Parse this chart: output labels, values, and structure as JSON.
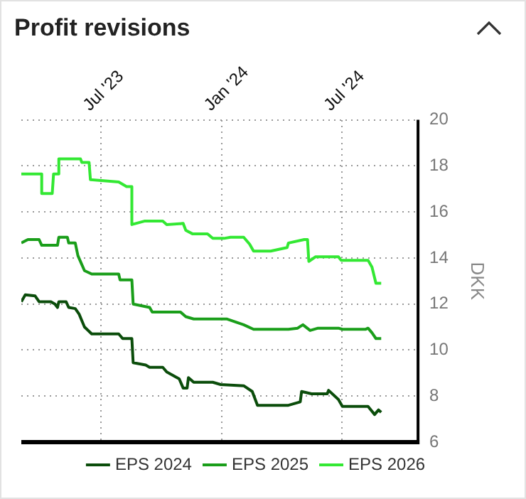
{
  "chart_data": {
    "type": "line",
    "title": "Profit revisions",
    "ylabel": "DKK",
    "xlim": [
      "2023-03-02",
      "2024-10-25"
    ],
    "xticks": [
      {
        "value": "2023-07-01",
        "label": "Jul '23"
      },
      {
        "value": "2024-01-01",
        "label": "Jan '24"
      },
      {
        "value": "2024-07-01",
        "label": "Jul '24"
      }
    ],
    "ylim": [
      6,
      20
    ],
    "yticks": [
      6,
      8,
      10,
      12,
      14,
      16,
      18,
      20
    ],
    "grid": true,
    "legend": "bottom",
    "marker": "none",
    "line_style": "solid",
    "series": [
      {
        "name": "EPS 2024",
        "color": "#0b4d0b",
        "x": [
          "2023-03-02",
          "2023-03-08",
          "2023-03-23",
          "2023-03-29",
          "2023-04-16",
          "2023-04-22",
          "2023-04-26",
          "2023-04-28",
          "2023-05-09",
          "2023-05-13",
          "2023-05-23",
          "2023-05-29",
          "2023-06-06",
          "2023-06-17",
          "2023-07-28",
          "2023-08-03",
          "2023-08-17",
          "2023-08-19",
          "2023-09-07",
          "2023-09-13",
          "2023-10-03",
          "2023-10-09",
          "2023-10-28",
          "2023-11-03",
          "2023-11-09",
          "2023-11-11",
          "2023-11-19",
          "2023-12-18",
          "2023-12-30",
          "2024-02-03",
          "2024-02-16",
          "2024-02-24",
          "2024-04-11",
          "2024-04-29",
          "2024-05-01",
          "2024-05-16",
          "2024-06-09",
          "2024-06-11",
          "2024-06-26",
          "2024-07-02",
          "2024-08-10",
          "2024-08-20",
          "2024-08-26",
          "2024-08-30"
        ],
        "values": [
          12.1,
          12.4,
          12.35,
          12.1,
          12.1,
          12.0,
          11.85,
          12.1,
          12.1,
          11.85,
          11.8,
          11.55,
          11.0,
          10.7,
          10.7,
          10.5,
          10.5,
          9.45,
          9.35,
          9.25,
          9.25,
          9.05,
          8.75,
          8.35,
          8.35,
          8.8,
          8.6,
          8.6,
          8.5,
          8.45,
          8.2,
          7.6,
          7.6,
          7.75,
          8.2,
          8.1,
          8.1,
          8.25,
          7.85,
          7.55,
          7.55,
          7.2,
          7.4,
          7.3
        ]
      },
      {
        "name": "EPS 2025",
        "color": "#1a9e1a",
        "x": [
          "2023-03-02",
          "2023-03-12",
          "2023-03-29",
          "2023-04-02",
          "2023-04-26",
          "2023-04-28",
          "2023-05-11",
          "2023-05-13",
          "2023-05-23",
          "2023-05-27",
          "2023-06-06",
          "2023-06-17",
          "2023-07-28",
          "2023-07-30",
          "2023-08-17",
          "2023-08-19",
          "2023-09-13",
          "2023-09-17",
          "2023-10-30",
          "2023-11-07",
          "2023-11-19",
          "2024-01-08",
          "2024-02-03",
          "2024-02-18",
          "2024-04-11",
          "2024-04-25",
          "2024-05-03",
          "2024-05-14",
          "2024-05-26",
          "2024-06-26",
          "2024-07-02",
          "2024-08-06",
          "2024-08-10",
          "2024-08-16",
          "2024-08-22",
          "2024-08-30"
        ],
        "values": [
          14.65,
          14.8,
          14.8,
          14.55,
          14.55,
          14.9,
          14.9,
          14.65,
          14.65,
          14.1,
          13.45,
          13.3,
          13.3,
          13.05,
          13.05,
          12.0,
          11.85,
          11.65,
          11.65,
          11.45,
          11.35,
          11.35,
          11.1,
          10.9,
          10.9,
          10.95,
          11.1,
          10.85,
          10.95,
          10.95,
          10.9,
          10.9,
          10.95,
          10.75,
          10.5,
          10.5
        ]
      },
      {
        "name": "EPS 2026",
        "color": "#33e833",
        "x": [
          "2023-03-02",
          "2023-04-02",
          "2023-04-02",
          "2023-04-18",
          "2023-04-20",
          "2023-04-28",
          "2023-04-28",
          "2023-05-31",
          "2023-06-02",
          "2023-06-13",
          "2023-06-15",
          "2023-07-28",
          "2023-08-09",
          "2023-08-17",
          "2023-08-17",
          "2023-09-05",
          "2023-10-03",
          "2023-10-09",
          "2023-11-03",
          "2023-11-07",
          "2023-11-17",
          "2023-12-10",
          "2023-12-18",
          "2024-01-04",
          "2024-01-14",
          "2024-02-03",
          "2024-02-12",
          "2024-02-18",
          "2024-03-15",
          "2024-04-09",
          "2024-04-11",
          "2024-05-05",
          "2024-05-10",
          "2024-05-12",
          "2024-05-22",
          "2024-06-26",
          "2024-06-30",
          "2024-08-10",
          "2024-08-16",
          "2024-08-22",
          "2024-08-30"
        ],
        "values": [
          17.65,
          17.65,
          16.8,
          16.8,
          17.65,
          17.65,
          18.3,
          18.3,
          18.15,
          18.15,
          17.4,
          17.3,
          17.1,
          17.1,
          15.45,
          15.6,
          15.6,
          15.45,
          15.5,
          15.2,
          15.05,
          15.05,
          14.85,
          14.85,
          14.9,
          14.9,
          14.6,
          14.3,
          14.3,
          14.45,
          14.65,
          14.8,
          14.8,
          13.85,
          14.05,
          14.05,
          13.9,
          13.9,
          13.6,
          12.9,
          12.9
        ]
      }
    ]
  }
}
